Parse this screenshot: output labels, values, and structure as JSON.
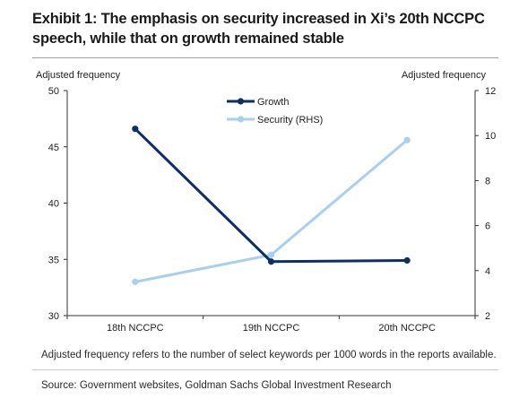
{
  "exhibit": {
    "title": "Exhibit 1: The emphasis on security increased in Xi’s 20th NCCPC speech, while that on growth remained stable",
    "note": "Adjusted frequency refers to the number of select keywords per 1000 words in the reports available.",
    "source": "Source: Government websites, Goldman Sachs Global Investment Research"
  },
  "colors": {
    "growth": "#0d2f63",
    "security": "#a9cfee",
    "axis": "#333333",
    "text": "#222222"
  },
  "chart_data": {
    "type": "line",
    "categories": [
      "18th NCCPC",
      "19th NCCPC",
      "20th NCCPC"
    ],
    "ylabel_left": "Adjusted frequency",
    "ylabel_right": "Adjusted frequency",
    "ylim_left": [
      30,
      50
    ],
    "yticks_left": [
      30,
      35,
      40,
      45,
      50
    ],
    "ylim_right": [
      2,
      12
    ],
    "yticks_right": [
      2,
      4,
      6,
      8,
      10,
      12
    ],
    "grid": false,
    "legend_position": "top-center",
    "series": [
      {
        "name": "Growth",
        "axis": "left",
        "marker": "circle",
        "values": [
          46.6,
          34.8,
          34.9
        ]
      },
      {
        "name": "Security (RHS)",
        "axis": "right",
        "marker": "circle",
        "values": [
          3.5,
          4.7,
          9.8
        ]
      }
    ]
  }
}
